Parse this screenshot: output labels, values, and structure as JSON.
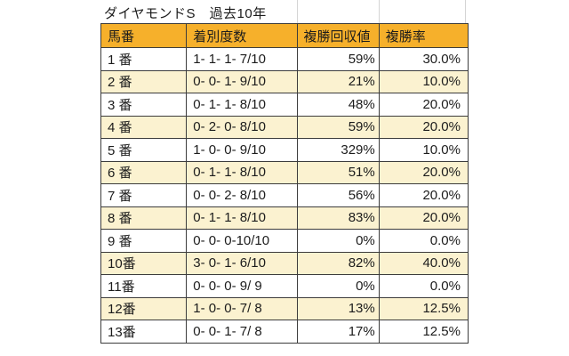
{
  "title": "ダイヤモンドS　過去10年",
  "chart_data": {
    "type": "table",
    "title": "ダイヤモンドS　過去10年",
    "columns": [
      "馬番",
      "着別度数",
      "複勝回収値",
      "複勝率"
    ],
    "rows": [
      [
        "1 番",
        "1- 1- 1- 7/10",
        "59%",
        "30.0%"
      ],
      [
        "2 番",
        "0- 0- 1- 9/10",
        "21%",
        "10.0%"
      ],
      [
        "3 番",
        "0- 1- 1- 8/10",
        "48%",
        "20.0%"
      ],
      [
        "4 番",
        "0- 2- 0- 8/10",
        "59%",
        "20.0%"
      ],
      [
        "5 番",
        "1- 0- 0- 9/10",
        "329%",
        "10.0%"
      ],
      [
        "6 番",
        "0- 1- 1- 8/10",
        "51%",
        "20.0%"
      ],
      [
        "7 番",
        "0- 0- 2- 8/10",
        "56%",
        "20.0%"
      ],
      [
        "8 番",
        "0- 1- 1- 8/10",
        "83%",
        "20.0%"
      ],
      [
        "9 番",
        "0- 0- 0-10/10",
        "0%",
        "0.0%"
      ],
      [
        "10番",
        "3- 0- 1- 6/10",
        "82%",
        "40.0%"
      ],
      [
        "11番",
        "0- 0- 0- 9/ 9",
        "0%",
        "0.0%"
      ],
      [
        "12番",
        "1- 0- 0- 7/ 8",
        "13%",
        "12.5%"
      ],
      [
        "13番",
        "0- 0- 1- 7/ 8",
        "17%",
        "12.5%"
      ]
    ]
  },
  "colors": {
    "header_bg": "#F6B02B",
    "stripe_bg": "#FBF2D0",
    "row_bg": "#FFFFFF",
    "border": "#3C3C3C",
    "gridline": "#D4D4D4",
    "text": "#1C1C1C"
  }
}
